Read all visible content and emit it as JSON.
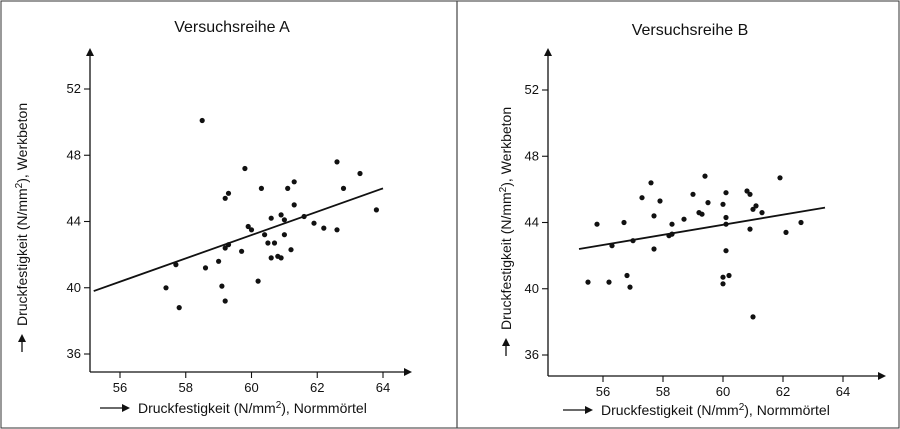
{
  "chart_data": [
    {
      "type": "scatter",
      "title": "Versuchsreihe A",
      "xlabel": "Druckfestigkeit (N/mm²), Normmörtel",
      "ylabel": "Druckfestigkeit (N/mm²), Werkbeton",
      "xlim": [
        55,
        64.5
      ],
      "ylim": [
        35.5,
        54
      ],
      "xticks": [
        56,
        58,
        60,
        62,
        64
      ],
      "yticks": [
        36,
        40,
        44,
        48,
        52
      ],
      "points": [
        [
          57.4,
          40.0
        ],
        [
          57.7,
          41.4
        ],
        [
          57.8,
          38.8
        ],
        [
          58.5,
          50.1
        ],
        [
          58.6,
          41.2
        ],
        [
          59.0,
          41.6
        ],
        [
          59.1,
          40.1
        ],
        [
          59.2,
          39.2
        ],
        [
          59.2,
          42.4
        ],
        [
          59.2,
          45.4
        ],
        [
          59.3,
          45.7
        ],
        [
          59.3,
          42.6
        ],
        [
          59.7,
          42.2
        ],
        [
          59.8,
          47.2
        ],
        [
          59.9,
          43.7
        ],
        [
          60.0,
          43.5
        ],
        [
          60.2,
          40.4
        ],
        [
          60.3,
          46.0
        ],
        [
          60.4,
          43.2
        ],
        [
          60.5,
          42.7
        ],
        [
          60.6,
          44.2
        ],
        [
          60.6,
          41.8
        ],
        [
          60.7,
          42.7
        ],
        [
          60.8,
          41.9
        ],
        [
          60.9,
          44.4
        ],
        [
          60.9,
          41.8
        ],
        [
          61.0,
          44.1
        ],
        [
          61.0,
          43.2
        ],
        [
          61.1,
          46.0
        ],
        [
          61.2,
          42.3
        ],
        [
          61.3,
          45.0
        ],
        [
          61.3,
          46.4
        ],
        [
          61.6,
          44.3
        ],
        [
          61.9,
          43.9
        ],
        [
          62.2,
          43.6
        ],
        [
          62.6,
          43.5
        ],
        [
          62.6,
          47.6
        ],
        [
          62.8,
          46.0
        ],
        [
          63.3,
          46.9
        ],
        [
          63.8,
          44.7
        ]
      ],
      "trend_line": {
        "x": [
          55.2,
          64.0
        ],
        "y": [
          39.8,
          46.0
        ]
      }
    },
    {
      "type": "scatter",
      "title": "Versuchsreihe B",
      "xlabel": "Druckfestigkeit (N/mm²), Normmörtel",
      "ylabel": "Druckfestigkeit (N/mm²), Werkbeton",
      "xlim": [
        55,
        66.5
      ],
      "ylim": [
        35.5,
        54
      ],
      "xticks": [
        56,
        58,
        60,
        62,
        64
      ],
      "yticks": [
        36,
        40,
        44,
        48,
        52
      ],
      "points": [
        [
          55.5,
          40.4
        ],
        [
          55.8,
          43.9
        ],
        [
          56.2,
          40.4
        ],
        [
          56.3,
          42.6
        ],
        [
          56.8,
          40.8
        ],
        [
          56.7,
          44.0
        ],
        [
          56.9,
          40.1
        ],
        [
          57.0,
          42.9
        ],
        [
          57.3,
          45.5
        ],
        [
          57.6,
          46.4
        ],
        [
          57.7,
          44.4
        ],
        [
          57.9,
          45.3
        ],
        [
          57.7,
          42.4
        ],
        [
          58.2,
          43.2
        ],
        [
          58.3,
          43.3
        ],
        [
          58.3,
          43.9
        ],
        [
          58.7,
          44.2
        ],
        [
          59.0,
          45.7
        ],
        [
          59.2,
          44.6
        ],
        [
          59.3,
          44.5
        ],
        [
          59.4,
          46.8
        ],
        [
          59.5,
          45.2
        ],
        [
          60.0,
          40.7
        ],
        [
          60.0,
          40.3
        ],
        [
          60.0,
          45.1
        ],
        [
          60.1,
          44.3
        ],
        [
          60.1,
          45.8
        ],
        [
          60.1,
          42.3
        ],
        [
          60.1,
          43.9
        ],
        [
          60.2,
          40.8
        ],
        [
          60.8,
          45.9
        ],
        [
          60.9,
          45.7
        ],
        [
          60.9,
          43.6
        ],
        [
          61.0,
          38.3
        ],
        [
          61.0,
          44.8
        ],
        [
          61.1,
          45.0
        ],
        [
          61.3,
          44.6
        ],
        [
          61.9,
          46.7
        ],
        [
          62.1,
          43.4
        ],
        [
          62.6,
          44.0
        ]
      ],
      "trend_line": {
        "x": [
          55.2,
          63.4
        ],
        "y": [
          42.4,
          44.9
        ]
      }
    }
  ]
}
